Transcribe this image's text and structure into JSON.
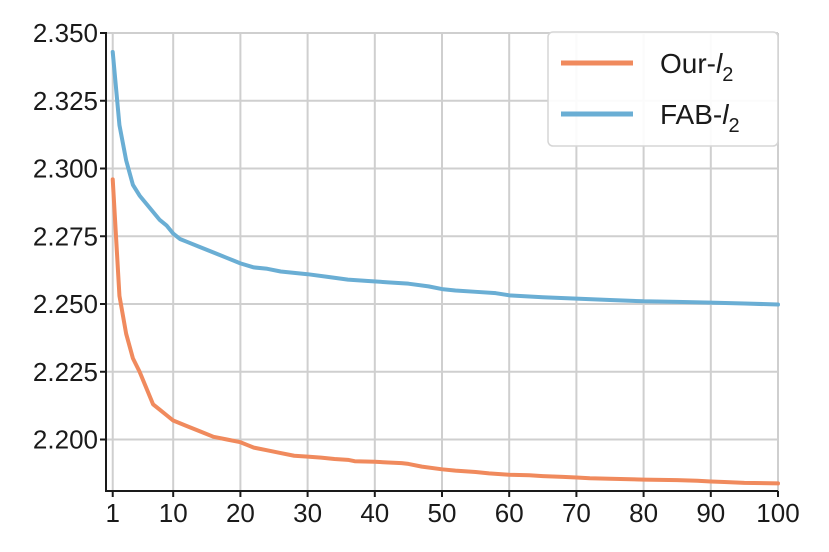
{
  "chart_data": {
    "type": "line",
    "title": "",
    "xlabel": "",
    "ylabel": "",
    "xlim": [
      0,
      100
    ],
    "ylim": [
      2.181,
      2.35
    ],
    "x_ticks": [
      1,
      10,
      20,
      30,
      40,
      50,
      60,
      70,
      80,
      90,
      100
    ],
    "x_tick_labels": [
      "1",
      "10",
      "20",
      "30",
      "40",
      "50",
      "60",
      "70",
      "80",
      "90",
      "100"
    ],
    "y_ticks": [
      2.2,
      2.225,
      2.25,
      2.275,
      2.3,
      2.325,
      2.35
    ],
    "y_tick_labels": [
      "2.200",
      "2.225",
      "2.250",
      "2.275",
      "2.300",
      "2.325",
      "2.350"
    ],
    "grid": true,
    "legend_position": "top-right",
    "series": [
      {
        "name": "Our-l2",
        "legend_prefix": "Our-",
        "legend_italic": "l",
        "legend_sub": "2",
        "color": "#f08a5d",
        "x": [
          1,
          2,
          3,
          4,
          5,
          6,
          7,
          8,
          9,
          10,
          12,
          14,
          16,
          18,
          20,
          21,
          22,
          24,
          26,
          28,
          30,
          32,
          34,
          36,
          37,
          40,
          42,
          44,
          45,
          47,
          50,
          52,
          55,
          57,
          60,
          63,
          65,
          68,
          70,
          72,
          75,
          80,
          85,
          88,
          90,
          92,
          95,
          100
        ],
        "y": [
          2.296,
          2.253,
          2.239,
          2.23,
          2.225,
          2.219,
          2.213,
          2.211,
          2.209,
          2.207,
          2.205,
          2.203,
          2.201,
          2.2,
          2.199,
          2.198,
          2.197,
          2.196,
          2.195,
          2.194,
          2.1937,
          2.1933,
          2.1928,
          2.1925,
          2.192,
          2.1918,
          2.1915,
          2.1913,
          2.191,
          2.19,
          2.189,
          2.1885,
          2.188,
          2.1875,
          2.187,
          2.1868,
          2.1865,
          2.1862,
          2.186,
          2.1857,
          2.1855,
          2.1852,
          2.185,
          2.1848,
          2.1845,
          2.1843,
          2.184,
          2.1838
        ]
      },
      {
        "name": "FAB-l2",
        "legend_prefix": "FAB-",
        "legend_italic": "l",
        "legend_sub": "2",
        "color": "#6aaed4",
        "x": [
          1,
          2,
          3,
          4,
          5,
          6,
          7,
          8,
          9,
          10,
          11,
          12,
          14,
          16,
          18,
          19,
          20,
          22,
          24,
          26,
          28,
          30,
          33,
          36,
          39,
          42,
          45,
          48,
          50,
          52,
          55,
          58,
          60,
          65,
          70,
          75,
          80,
          85,
          90,
          95,
          100
        ],
        "y": [
          2.343,
          2.316,
          2.303,
          2.294,
          2.29,
          2.287,
          2.284,
          2.281,
          2.279,
          2.276,
          2.274,
          2.273,
          2.271,
          2.269,
          2.267,
          2.266,
          2.265,
          2.2635,
          2.263,
          2.262,
          2.2615,
          2.261,
          2.26,
          2.259,
          2.2585,
          2.258,
          2.2575,
          2.2565,
          2.2555,
          2.255,
          2.2545,
          2.254,
          2.2532,
          2.2525,
          2.252,
          2.2515,
          2.251,
          2.2508,
          2.2505,
          2.2502,
          2.2498
        ]
      }
    ]
  }
}
